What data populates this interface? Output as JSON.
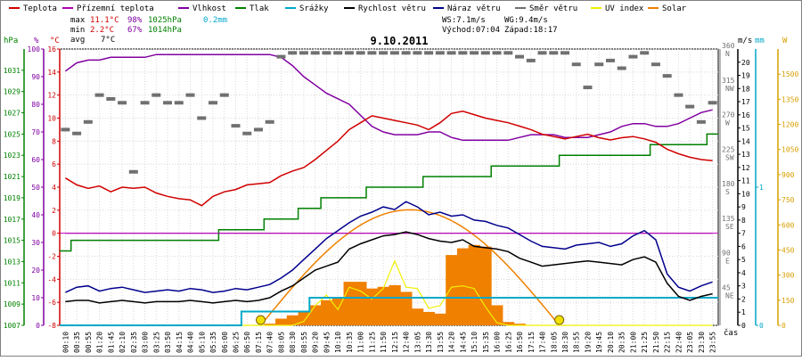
{
  "legend": [
    {
      "label": "Teplota",
      "color": "#d00000"
    },
    {
      "label": "Přízemní teplota",
      "color": "#b000b0"
    },
    {
      "label": "Vlhkost",
      "color": "#8000a0"
    },
    {
      "label": "Tlak",
      "color": "#008000"
    },
    {
      "label": "Srážky",
      "color": "#00a8c8"
    },
    {
      "label": "Rychlost větru",
      "color": "#000000"
    },
    {
      "label": "Náraz větru",
      "color": "#00008c"
    },
    {
      "label": "Směr větru",
      "color": "#707070"
    },
    {
      "label": "UV index",
      "color": "#f0f000"
    },
    {
      "label": "Solar",
      "color": "#f08000"
    }
  ],
  "stats": {
    "max": {
      "label": "max",
      "temp": "11.1°C",
      "hum": "98%",
      "press": "1025hPa",
      "rain": "0.2mm"
    },
    "min": {
      "label": "min",
      "temp": "2.2°C",
      "hum": "67%",
      "press": "1014hPa"
    },
    "avg": {
      "label": "avg",
      "temp": "7°C"
    }
  },
  "wind_info": {
    "ws": "WS:7.1m/s",
    "wg": "WG:9.4m/s",
    "sunrise": "Východ:07:04",
    "sunset": "Západ:18:17"
  },
  "chart_data": {
    "type": "line",
    "title": "9.10.2011",
    "xlabel": "čas",
    "x_ticks": [
      "00:10",
      "00:35",
      "00:55",
      "01:20",
      "01:45",
      "02:10",
      "02:35",
      "03:00",
      "03:25",
      "03:50",
      "04:15",
      "04:40",
      "05:10",
      "05:35",
      "06:00",
      "06:25",
      "06:50",
      "07:15",
      "07:40",
      "08:05",
      "08:30",
      "08:55",
      "09:20",
      "09:45",
      "10:10",
      "10:35",
      "11:00",
      "11:25",
      "11:50",
      "12:15",
      "12:40",
      "13:05",
      "13:30",
      "13:55",
      "14:20",
      "14:45",
      "15:10",
      "15:35",
      "16:00",
      "16:25",
      "16:50",
      "17:15",
      "17:40",
      "18:05",
      "18:30",
      "18:55",
      "19:20",
      "19:45",
      "20:10",
      "20:35",
      "21:00",
      "21:25",
      "21:50",
      "22:15",
      "22:40",
      "23:05",
      "23:30",
      "23:55"
    ],
    "axes": {
      "hpa": {
        "label": "hPa",
        "ylim": [
          1007,
          1033
        ],
        "ticks": [
          "1007",
          "1009",
          "1011",
          "1013",
          "1015",
          "1017",
          "1019",
          "1021",
          "1023",
          "1025",
          "1027",
          "1029",
          "1031"
        ]
      },
      "pct": {
        "label": "%",
        "ylim": [
          0,
          100
        ],
        "ticks": [
          "0",
          "10",
          "20",
          "30",
          "40",
          "50",
          "60",
          "70",
          "80",
          "90",
          "100"
        ]
      },
      "temp": {
        "label": "°C",
        "ylim": [
          -8,
          16
        ],
        "ticks": [
          "-8",
          "-6",
          "-4",
          "-2",
          "0",
          "2",
          "4",
          "6",
          "8",
          "10",
          "12",
          "14",
          "16"
        ]
      },
      "dir": {
        "label": "°",
        "ylim": [
          0,
          360
        ],
        "ticks": [
          "45 NE",
          "90 E",
          "135 SE",
          "180 S",
          "225 SW",
          "270 W",
          "315 NW",
          "360 N"
        ]
      },
      "ms": {
        "label": "m/s",
        "ylim": [
          0,
          21
        ],
        "ticks": [
          "0",
          "1",
          "2",
          "3",
          "4",
          "5",
          "6",
          "7",
          "8",
          "9",
          "10",
          "11",
          "12",
          "13",
          "14",
          "15",
          "16",
          "17",
          "18",
          "19",
          "20"
        ]
      },
      "mm": {
        "label": "mm",
        "ylim": [
          0,
          2
        ],
        "ticks": [
          "0",
          "1"
        ]
      },
      "w": {
        "label": "W",
        "ylim": [
          0,
          1650
        ],
        "ticks": [
          "0",
          "150",
          "300",
          "450",
          "600",
          "750",
          "900",
          "1050",
          "1200",
          "1350",
          "1500"
        ]
      }
    },
    "series": [
      {
        "name": "Teplota",
        "color": "#d00000",
        "axis": "temp",
        "values": [
          4.8,
          4.2,
          3.9,
          4.1,
          3.6,
          4.0,
          3.9,
          4.0,
          3.5,
          3.2,
          3.0,
          2.9,
          2.4,
          3.2,
          3.6,
          3.8,
          4.2,
          4.3,
          4.4,
          5.0,
          5.4,
          5.7,
          6.4,
          7.2,
          8.0,
          9.0,
          9.6,
          10.2,
          10.0,
          9.8,
          9.6,
          9.4,
          9.0,
          9.6,
          10.4,
          10.6,
          10.3,
          10.0,
          9.8,
          9.6,
          9.3,
          9.0,
          8.6,
          8.4,
          8.2,
          8.4,
          8.6,
          8.3,
          8.1,
          8.3,
          8.4,
          8.2,
          7.9,
          7.3,
          6.9,
          6.6,
          6.4,
          6.3
        ]
      },
      {
        "name": "Přízemní teplota",
        "color": "#b000b0",
        "axis": "temp",
        "values": [
          0,
          0,
          0,
          0,
          0,
          0,
          0,
          0,
          0,
          0,
          0,
          0,
          0,
          0,
          0,
          0,
          0,
          0,
          0,
          0,
          0,
          0,
          0,
          0,
          0,
          0,
          0,
          0,
          0,
          0,
          0,
          0,
          0,
          0,
          0,
          0,
          0,
          0,
          0,
          0,
          0,
          0,
          0,
          0,
          0,
          0,
          0,
          0,
          0,
          0,
          0,
          0,
          0,
          0,
          0,
          0,
          0,
          0
        ]
      },
      {
        "name": "Vlhkost",
        "color": "#8000a0",
        "axis": "pct",
        "values": [
          92,
          95,
          96,
          96,
          97,
          97,
          97,
          97,
          98,
          98,
          98,
          98,
          98,
          98,
          98,
          98,
          98,
          98,
          98,
          97,
          94,
          90,
          87,
          84,
          82,
          80,
          76,
          72,
          70,
          69,
          69,
          69,
          70,
          70,
          68,
          67,
          67,
          67,
          67,
          67,
          68,
          69,
          69,
          69,
          68,
          68,
          68,
          69,
          70,
          72,
          73,
          73,
          72,
          72,
          73,
          75,
          77,
          78
        ]
      },
      {
        "name": "Tlak",
        "color": "#008000",
        "axis": "hpa",
        "values": [
          1014,
          1015,
          1015,
          1015,
          1015,
          1015,
          1015,
          1015,
          1015,
          1015,
          1015,
          1015,
          1015,
          1015,
          1016,
          1016,
          1016,
          1016,
          1017,
          1017,
          1017,
          1018,
          1018,
          1019,
          1019,
          1019,
          1019,
          1020,
          1020,
          1020,
          1020,
          1020,
          1021,
          1021,
          1021,
          1021,
          1021,
          1021,
          1022,
          1022,
          1022,
          1022,
          1022,
          1022,
          1023,
          1023,
          1023,
          1023,
          1023,
          1023,
          1023,
          1023,
          1024,
          1024,
          1024,
          1024,
          1024,
          1025
        ]
      },
      {
        "name": "Rychlost větru",
        "color": "#000000",
        "axis": "ms",
        "values": [
          1.8,
          1.9,
          1.9,
          1.7,
          1.8,
          1.9,
          1.8,
          1.7,
          1.8,
          1.8,
          1.8,
          1.9,
          1.8,
          1.7,
          1.8,
          1.9,
          1.8,
          1.9,
          2.1,
          2.6,
          3.0,
          3.6,
          4.2,
          4.5,
          4.8,
          5.8,
          6.2,
          6.5,
          6.8,
          6.9,
          7.1,
          6.9,
          6.6,
          6.4,
          6.3,
          6.5,
          6.0,
          5.9,
          5.8,
          5.6,
          5.1,
          4.8,
          4.5,
          4.6,
          4.7,
          4.8,
          4.9,
          4.8,
          4.7,
          4.6,
          5.0,
          5.2,
          4.8,
          3.2,
          2.2,
          1.9,
          2.2,
          2.4
        ]
      },
      {
        "name": "Náraz větru",
        "color": "#00008c",
        "axis": "ms",
        "values": [
          2.5,
          2.9,
          3.0,
          2.6,
          2.8,
          2.9,
          2.7,
          2.5,
          2.6,
          2.7,
          2.6,
          2.8,
          2.7,
          2.5,
          2.6,
          2.8,
          2.7,
          2.9,
          3.1,
          3.6,
          4.2,
          5.0,
          5.8,
          6.6,
          7.2,
          7.8,
          8.3,
          8.6,
          9.0,
          8.8,
          9.4,
          9.0,
          8.4,
          8.6,
          8.3,
          8.4,
          8.0,
          7.9,
          7.6,
          7.4,
          6.9,
          6.4,
          6.0,
          5.9,
          5.8,
          6.1,
          6.2,
          6.3,
          6.0,
          6.2,
          6.8,
          7.2,
          6.5,
          3.9,
          2.9,
          2.6,
          3.0,
          3.3
        ]
      },
      {
        "name": "Srážky",
        "color": "#00a8c8",
        "axis": "mm",
        "values": [
          0,
          0,
          0,
          0,
          0,
          0,
          0,
          0,
          0,
          0,
          0,
          0,
          0,
          0,
          0,
          0,
          0.1,
          0.1,
          0.1,
          0.1,
          0.1,
          0.1,
          0.2,
          0.2,
          0.2,
          0.2,
          0.2,
          0.2,
          0.2,
          0.2,
          0.2,
          0.2,
          0.2,
          0.2,
          0.2,
          0.2,
          0.2,
          0.2,
          0.2,
          0.2,
          0.2,
          0.2,
          0.2,
          0.2,
          0.2,
          0.2,
          0.2,
          0.2,
          0.2,
          0.2,
          0.2,
          0.2,
          0.2,
          0.2,
          0.2,
          0.2,
          0.2,
          0.2
        ]
      },
      {
        "name": "UV index",
        "color": "#f0f000",
        "axis": "ms",
        "values": [
          0,
          0,
          0,
          0,
          0,
          0,
          0,
          0,
          0,
          0,
          0,
          0,
          0,
          0,
          0,
          0,
          0,
          0,
          0,
          0,
          0,
          0.3,
          1.5,
          2.3,
          1.2,
          2.9,
          2.6,
          2.0,
          2.8,
          4.9,
          2.9,
          2.8,
          1.3,
          1.5,
          2.9,
          3.0,
          2.8,
          1.4,
          0.2,
          0,
          0,
          0,
          0,
          0,
          0,
          0,
          0,
          0,
          0,
          0,
          0,
          0,
          0,
          0,
          0,
          0,
          0,
          0
        ]
      },
      {
        "name": "Solar",
        "color": "#f08000",
        "axis": "w",
        "values": [
          0,
          0,
          0,
          0,
          0,
          0,
          0,
          0,
          0,
          0,
          0,
          0,
          0,
          0,
          0,
          0,
          0,
          0,
          10,
          40,
          60,
          80,
          120,
          150,
          170,
          260,
          260,
          220,
          230,
          240,
          200,
          100,
          80,
          70,
          420,
          460,
          480,
          470,
          120,
          20,
          10,
          0,
          0,
          0,
          0,
          0,
          0,
          0,
          0,
          0,
          0,
          0,
          0,
          0,
          0,
          0,
          0,
          0
        ]
      },
      {
        "name": "Směr větru",
        "color": "#707070",
        "axis": "dir",
        "values": [
          255,
          250,
          265,
          300,
          295,
          290,
          200,
          290,
          300,
          290,
          290,
          300,
          270,
          290,
          300,
          260,
          250,
          255,
          265,
          350,
          355,
          355,
          355,
          355,
          355,
          355,
          355,
          355,
          355,
          355,
          355,
          355,
          355,
          355,
          355,
          355,
          355,
          355,
          355,
          355,
          350,
          345,
          355,
          355,
          355,
          340,
          310,
          340,
          345,
          335,
          350,
          355,
          340,
          325,
          300,
          285,
          265,
          290
        ]
      }
    ],
    "solar_theoretical": {
      "name": "Solar (max)",
      "color": "#f08000",
      "peak": 690,
      "sunrise_index": 17.2,
      "sunset_index": 43.5
    }
  }
}
